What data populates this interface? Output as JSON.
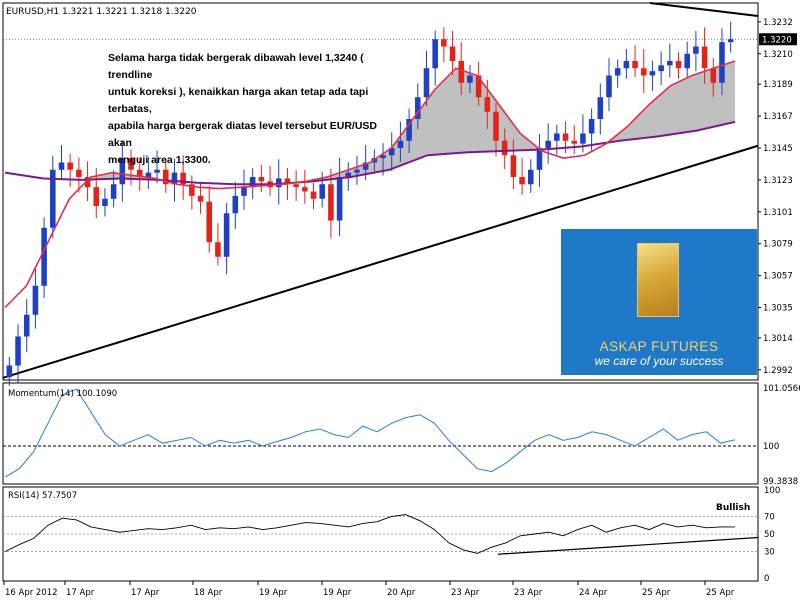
{
  "colors": {
    "bull": "#1f3fc4",
    "bear": "#e2231a",
    "ma_fast": "#e0304a",
    "ma_slow": "#7a1a8a",
    "indicator": "#2a7fd8",
    "trendline": "#000000",
    "fill": "#c0c0c0",
    "logo_bg": "#1f78c8",
    "logo_gold": "#f2d36b"
  },
  "main_chart": {
    "header": {
      "symbol": "EURUSD,H1",
      "open": "1.3221",
      "high": "1.3221",
      "low": "1.3218",
      "close": "1.3220"
    },
    "price_ticks": [
      "1.3232",
      "1.3210",
      "1.3189",
      "1.3167",
      "1.3145",
      "1.3123",
      "1.3101",
      "1.3079",
      "1.3057",
      "1.3035",
      "1.3014",
      "1.2992"
    ],
    "current_price": "1.3220",
    "annotation": [
      "Selama harga tidak bergerak dibawah level 1,3240 ( trendline",
      "untuk koreksi ), kenaikkan harga akan tetap ada tapi terbatas,",
      "apabila harga bergerak diatas level tersebut EUR/USD akan",
      "menguji area 1,3300."
    ],
    "logo": {
      "name": "ASKAP FUTURES",
      "tagline": "we care of your success"
    }
  },
  "momentum": {
    "label": "Momentum(14) 100.1090",
    "ticks": [
      "101.0566",
      "100",
      "99.3838"
    ]
  },
  "rsi": {
    "label": "RSI(14) 57.7507",
    "ticks": [
      "100",
      "70",
      "50",
      "30",
      "0"
    ],
    "annotation": "Bullish"
  },
  "time_axis": [
    "16 Apr 2012",
    "17 Apr",
    "17 Apr",
    "18 Apr",
    "19 Apr",
    "19 Apr",
    "20 Apr",
    "23 Apr",
    "23 Apr",
    "24 Apr",
    "25 Apr",
    "25 Apr"
  ],
  "chart_data": [
    {
      "type": "candlestick",
      "title": "EURUSD,H1",
      "x_range": [
        "16 Apr 2012",
        "25 Apr"
      ],
      "ylim": [
        1.2985,
        1.3245
      ],
      "price_path_closes": [
        1.2995,
        1.3015,
        1.303,
        1.305,
        1.309,
        1.313,
        1.3135,
        1.313,
        1.3125,
        1.3118,
        1.3105,
        1.311,
        1.312,
        1.3138,
        1.313,
        1.3125,
        1.3128,
        1.313,
        1.312,
        1.3128,
        1.312,
        1.3112,
        1.3108,
        1.308,
        1.307,
        1.31,
        1.3112,
        1.3118,
        1.3125,
        1.3122,
        1.3118,
        1.3124,
        1.312,
        1.3118,
        1.3115,
        1.311,
        1.312,
        1.3095,
        1.3125,
        1.3128,
        1.313,
        1.3135,
        1.3138,
        1.314,
        1.3145,
        1.315,
        1.3165,
        1.318,
        1.32,
        1.322,
        1.3215,
        1.3205,
        1.319,
        1.3195,
        1.318,
        1.317,
        1.315,
        1.314,
        1.3125,
        1.312,
        1.313,
        1.3145,
        1.315,
        1.3155,
        1.315,
        1.3148,
        1.3155,
        1.3165,
        1.318,
        1.3195,
        1.32,
        1.3205,
        1.32,
        1.3195,
        1.3198,
        1.3202,
        1.3205,
        1.32,
        1.321,
        1.3215,
        1.32,
        1.319,
        1.3218,
        1.322
      ],
      "ma_fast_values": [
        1.3035,
        1.305,
        1.308,
        1.311,
        1.3125,
        1.3128,
        1.3126,
        1.3124,
        1.312,
        1.3118,
        1.3117,
        1.3118,
        1.3119,
        1.312,
        1.3122,
        1.3125,
        1.313,
        1.3135,
        1.3145,
        1.3165,
        1.3185,
        1.32,
        1.3195,
        1.3175,
        1.3155,
        1.3143,
        1.3138,
        1.314,
        1.3148,
        1.316,
        1.3175,
        1.3188,
        1.3195,
        1.32,
        1.3205
      ],
      "ma_slow_values": [
        1.3128,
        1.3124,
        1.3123,
        1.3124,
        1.3123,
        1.3121,
        1.312,
        1.312,
        1.3122,
        1.3125,
        1.313,
        1.314,
        1.3142,
        1.3143,
        1.3144,
        1.3146,
        1.315,
        1.3153,
        1.3157,
        1.3163
      ],
      "trendline_support": [
        [
          1.2992,
          "16 Apr 2012"
        ],
        [
          1.315,
          "25 Apr"
        ]
      ],
      "trendline_resistance_level": 1.324
    },
    {
      "type": "line",
      "title": "Momentum(14)",
      "series": [
        {
          "name": "Momentum(14)",
          "last": 100.109
        }
      ],
      "ylim": [
        99.3838,
        101.0566
      ],
      "reference_line": 100,
      "values": [
        99.45,
        99.6,
        99.9,
        100.4,
        100.9,
        101.0,
        100.6,
        100.2,
        100.0,
        100.1,
        100.2,
        100.05,
        100.1,
        100.15,
        100.0,
        100.1,
        100.05,
        100.1,
        100.0,
        100.08,
        100.15,
        100.25,
        100.3,
        100.2,
        100.15,
        100.35,
        100.25,
        100.4,
        100.5,
        100.55,
        100.4,
        100.1,
        99.85,
        99.6,
        99.55,
        99.7,
        99.9,
        100.1,
        100.2,
        100.1,
        100.15,
        100.25,
        100.2,
        100.1,
        100.0,
        100.15,
        100.3,
        100.1,
        100.2,
        100.25,
        100.05,
        100.11
      ]
    },
    {
      "type": "line",
      "title": "RSI(14)",
      "series": [
        {
          "name": "RSI(14)",
          "last": 57.7507
        }
      ],
      "ylim": [
        0,
        100
      ],
      "levels": [
        70,
        50,
        30
      ],
      "values": [
        30,
        38,
        45,
        60,
        68,
        66,
        58,
        55,
        52,
        54,
        56,
        55,
        57,
        60,
        55,
        57,
        56,
        58,
        55,
        57,
        60,
        63,
        62,
        60,
        58,
        62,
        64,
        70,
        72,
        65,
        55,
        40,
        32,
        28,
        35,
        40,
        48,
        50,
        52,
        48,
        55,
        60,
        52,
        57,
        60,
        55,
        62,
        58,
        60,
        57,
        58,
        58
      ]
    }
  ]
}
